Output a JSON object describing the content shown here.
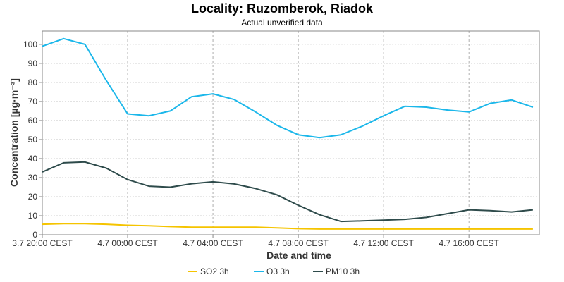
{
  "chart_data": {
    "type": "line",
    "title": "Locality: Ruzomberok, Riadok",
    "subtitle": "Actual unverified data",
    "xlabel": "Date and time",
    "ylabel": "Concentration [µg·m⁻³]",
    "ylim": [
      0,
      107
    ],
    "yticks": [
      0,
      10,
      20,
      30,
      40,
      50,
      60,
      70,
      80,
      90,
      100
    ],
    "xlim": [
      0,
      23.3
    ],
    "xticks": [
      {
        "x": 0,
        "label": "3.7 20:00 CEST"
      },
      {
        "x": 4,
        "label": "4.7 00:00 CEST"
      },
      {
        "x": 8,
        "label": "4.7 04:00 CEST"
      },
      {
        "x": 12,
        "label": "4.7 08:00 CEST"
      },
      {
        "x": 16,
        "label": "4.7 12:00 CEST"
      },
      {
        "x": 20,
        "label": "4.7 16:00 CEST"
      }
    ],
    "x": [
      0,
      1,
      2,
      3,
      4,
      5,
      6,
      7,
      8,
      9,
      10,
      11,
      12,
      13,
      14,
      15,
      16,
      17,
      18,
      19,
      20,
      21,
      22,
      23
    ],
    "series": [
      {
        "name": "SO2 3h",
        "color": "#f5c400",
        "values": [
          5.5,
          5.8,
          5.8,
          5.5,
          5.0,
          4.7,
          4.3,
          4.0,
          4.0,
          4.0,
          4.0,
          3.6,
          3.2,
          3.0,
          3.0,
          3.0,
          3.0,
          3.0,
          3.0,
          3.0,
          3.0,
          3.0,
          3.0,
          3.0
        ]
      },
      {
        "name": "O3 3h",
        "color": "#1bb7ea",
        "values": [
          99,
          103,
          100,
          81,
          63.5,
          62.5,
          65,
          72.5,
          74,
          71,
          64.5,
          57.5,
          52.5,
          51,
          52.5,
          57,
          62.5,
          67.5,
          67,
          65.5,
          64.5,
          69,
          70.8,
          67
        ]
      },
      {
        "name": "PM10 3h",
        "color": "#2e4b4b",
        "values": [
          33,
          37.8,
          38.2,
          35,
          29,
          25.5,
          25,
          26.8,
          27.8,
          26.7,
          24.3,
          21,
          15.5,
          10.5,
          7.0,
          7.3,
          7.7,
          8.1,
          9.1,
          11.1,
          13.1,
          12.7,
          12.0,
          13.1
        ]
      }
    ],
    "grid": true,
    "legend_position": "bottom"
  }
}
